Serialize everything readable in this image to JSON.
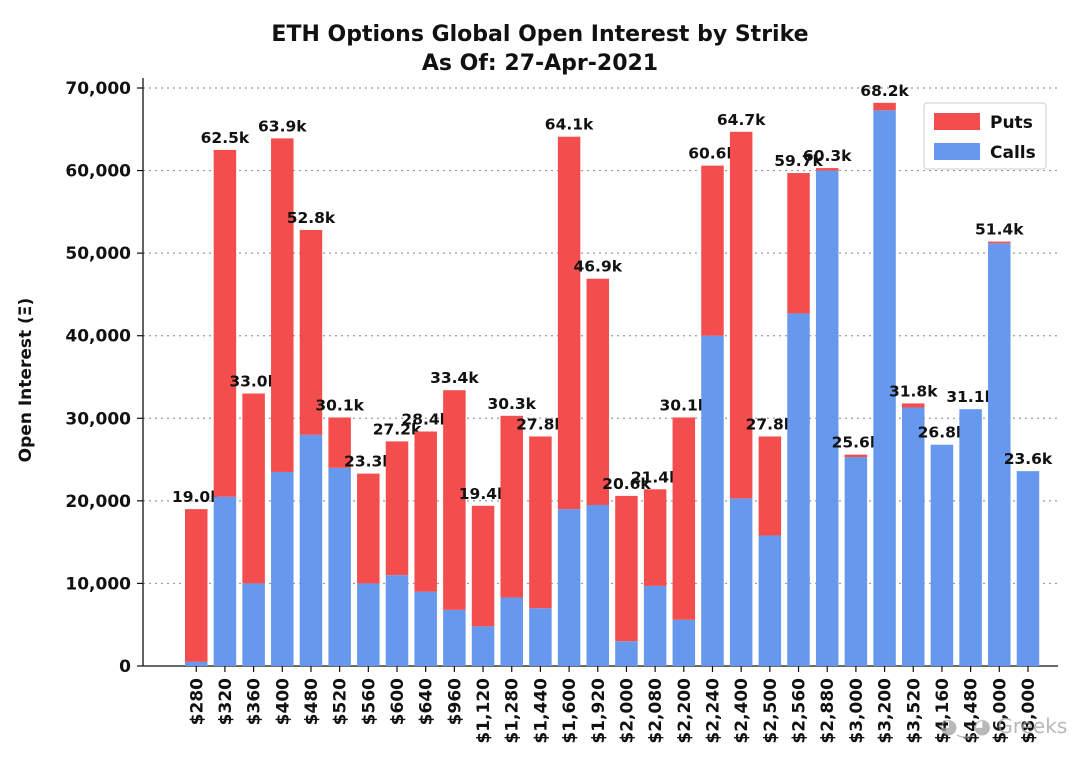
{
  "chart_data": {
    "type": "bar",
    "stacked": true,
    "title": "ETH Options Global Open Interest by Strike",
    "subtitle": "As Of: 27-Apr-2021",
    "ylabel": "Open Interest (Ξ)",
    "xlabel": "",
    "ylim": [
      0,
      70000
    ],
    "y_ticks": [
      "0",
      "10,000",
      "20,000",
      "30,000",
      "40,000",
      "50,000",
      "60,000",
      "70,000"
    ],
    "y_tick_values": [
      0,
      10000,
      20000,
      30000,
      40000,
      50000,
      60000,
      70000
    ],
    "grid": "horizontal dotted",
    "legend_position": "top-right",
    "categories": [
      "$280",
      "$320",
      "$360",
      "$400",
      "$480",
      "$520",
      "$560",
      "$600",
      "$640",
      "$960",
      "$1,120",
      "$1,280",
      "$1,440",
      "$1,600",
      "$1,920",
      "$2,000",
      "$2,080",
      "$2,200",
      "$2,240",
      "$2,400",
      "$2,500",
      "$2,560",
      "$2,880",
      "$3,000",
      "$3,200",
      "$3,520",
      "$4,160",
      "$4,480",
      "$6,000",
      "$8,000"
    ],
    "series": [
      {
        "name": "Calls",
        "color": "#6699ee",
        "values": [
          500,
          20500,
          10000,
          23500,
          28000,
          24000,
          10000,
          11000,
          9000,
          6800,
          4800,
          8300,
          7000,
          19000,
          19500,
          3000,
          9700,
          5600,
          40000,
          20300,
          15800,
          42700,
          60000,
          25300,
          67300,
          31300,
          26800,
          31100,
          51200,
          23600
        ]
      },
      {
        "name": "Puts",
        "color": "#f44d4d",
        "values": [
          18500,
          42000,
          23000,
          40400,
          24800,
          6100,
          13300,
          16200,
          19400,
          26600,
          14600,
          22000,
          20800,
          45100,
          27400,
          17600,
          11700,
          24500,
          20600,
          44400,
          12000,
          17000,
          300,
          300,
          900,
          500,
          0,
          0,
          200,
          0
        ]
      }
    ],
    "data_labels": [
      "19.0k",
      "62.5k",
      "33.0k",
      "63.9k",
      "52.8k",
      "30.1k",
      "23.3k",
      "27.2k",
      "28.4k",
      "33.4k",
      "19.4k",
      "30.3k",
      "27.8k",
      "64.1k",
      "46.9k",
      "20.6k",
      "21.4k",
      "30.1k",
      "60.6k",
      "64.7k",
      "27.8k",
      "59.7k",
      "60.3k",
      "25.6k",
      "68.2k",
      "31.8k",
      "26.8k",
      "31.1k",
      "51.4k",
      "23.6k"
    ]
  },
  "watermark": "Greeks"
}
